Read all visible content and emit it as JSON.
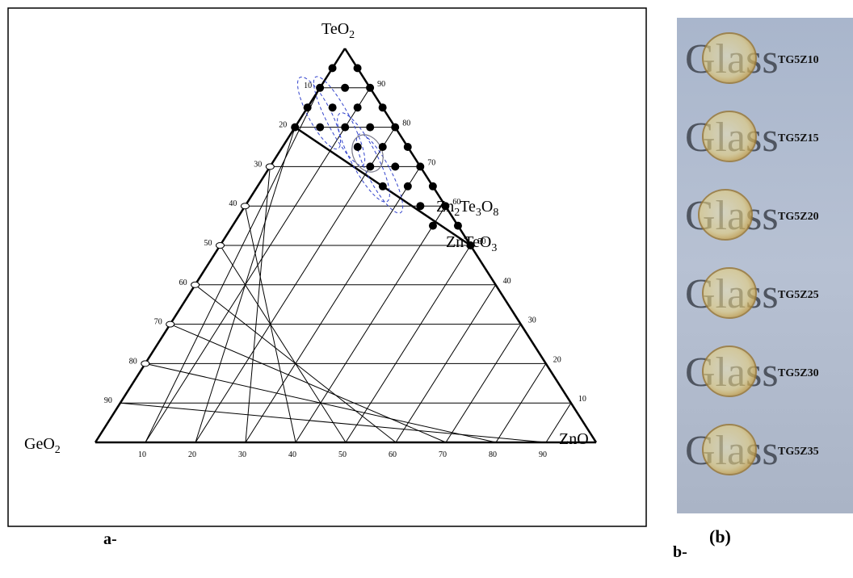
{
  "panel_a": {
    "vertices": {
      "top": {
        "parts": [
          "TeO",
          "2"
        ]
      },
      "left": {
        "parts": [
          "GeO",
          "2"
        ]
      },
      "right": {
        "parts": [
          "ZnO"
        ]
      },
      "phase1": {
        "parts": [
          "Zn",
          "2",
          "Te",
          "3",
          "O",
          "8"
        ]
      },
      "phase2": {
        "parts": [
          "ZnTeO",
          "3"
        ]
      }
    },
    "left_ticks": [
      "10",
      "20",
      "30",
      "40",
      "50",
      "60",
      "70",
      "80",
      "90"
    ],
    "right_ticks": [
      "90",
      "80",
      "70",
      "60",
      "50",
      "40",
      "30",
      "20",
      "10"
    ],
    "bottom_ticks": [
      "10",
      "20",
      "30",
      "40",
      "50",
      "60",
      "70",
      "80",
      "90"
    ],
    "caption": "a-"
  },
  "panel_b": {
    "samples": [
      {
        "word": "Glass",
        "label": "TG5Z10"
      },
      {
        "word": "Glass",
        "label": "TG5Z15"
      },
      {
        "word": "Glass",
        "label": "TG5Z20"
      },
      {
        "word": "Glass",
        "label": "TG5Z25"
      },
      {
        "word": "Glass",
        "label": "TG5Z30"
      },
      {
        "word": "Glass",
        "label": "TG5Z35"
      }
    ],
    "caption": "b-",
    "title": "(b)"
  }
}
